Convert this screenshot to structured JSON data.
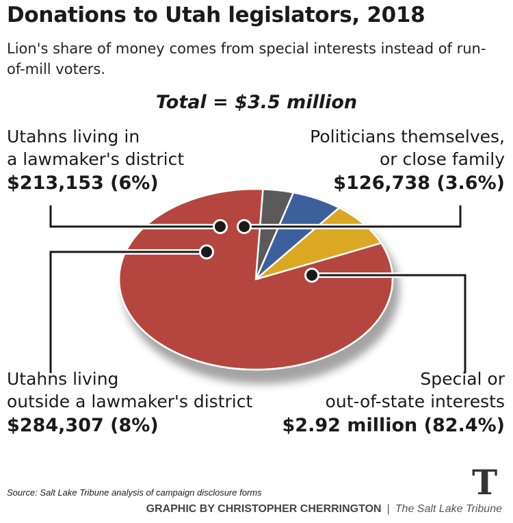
{
  "title": "Donations to Utah legislators, 2018",
  "subtitle": "Lion's share of money comes from special interests instead of run-of-mill voters.",
  "total": "Total = $3.5 million",
  "source": "Source: Salt Lake Tribune analysis of campaign disclosure forms",
  "credit": {
    "by": "GRAPHIC BY CHRISTOPHER CHERRINGTON",
    "separator": "|",
    "publisher": "The Salt Lake Tribune"
  },
  "logo": "T",
  "chart_data": {
    "type": "pie",
    "title": "Donations to Utah legislators, 2018",
    "subtitle": "Lion's share of money comes from special interests instead of run-of-mill voters.",
    "total_label": "Total = $3.5 million",
    "slices": [
      {
        "name": "Special or out-of-state interests",
        "line1": "Special or",
        "line2": "out-of-state interests",
        "value_label": "$2.92 million (82.4%)",
        "percent": 82.4,
        "color": "#b5463f"
      },
      {
        "name": "Utahns living outside a lawmaker's district",
        "line1": "Utahns living",
        "line2": "outside a lawmaker's district",
        "value_label": "$284,307 (8%)",
        "percent": 8,
        "color": "#dba823"
      },
      {
        "name": "Utahns living in a lawmaker's district",
        "line1": "Utahns living in",
        "line2": "a lawmaker's district",
        "value_label": "$213,153 (6%)",
        "percent": 6,
        "color": "#3b609c"
      },
      {
        "name": "Politicians themselves, or close family",
        "line1": "Politicians themselves,",
        "line2": "or close family",
        "value_label": "$126,738 (3.6%)",
        "percent": 3.6,
        "color": "#5a5a5a"
      }
    ]
  }
}
